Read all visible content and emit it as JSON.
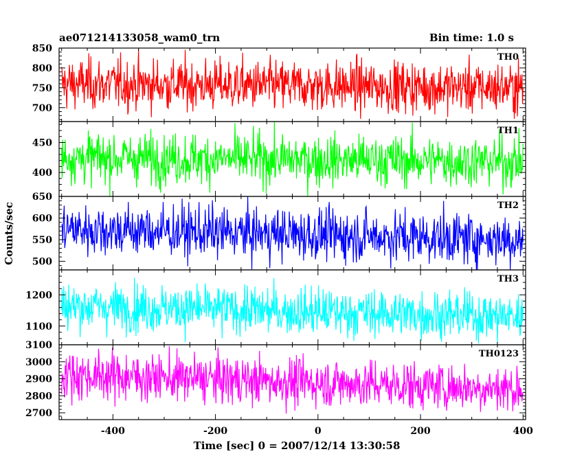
{
  "chart_data": {
    "type": "line",
    "title_left": "ae071214133058_wam0_trn",
    "title_right": "Bin time: 1.0 s",
    "xlabel": "Time [sec] 0 = 2007/12/14 13:30:58",
    "ylabel": "Counts/sec",
    "xlim": [
      -505,
      405
    ],
    "x_ticks": [
      -400,
      -200,
      0,
      200,
      400
    ],
    "x_start": -500,
    "x_end": 400,
    "x_step": 1,
    "panels": [
      {
        "name": "TH0",
        "color": "#ff0000",
        "ylim": [
          665,
          850
        ],
        "y_ticks": [
          700,
          750,
          800,
          850
        ],
        "mean_start": 760,
        "mean_end": 750,
        "spread": 32,
        "min_value": 665,
        "max_value": 850
      },
      {
        "name": "TH1",
        "color": "#00ff00",
        "ylim": [
          360,
          485
        ],
        "y_ticks": [
          400,
          450
        ],
        "mean_start": 425,
        "mean_end": 418,
        "spread": 21,
        "min_value": 360,
        "max_value": 485
      },
      {
        "name": "TH2",
        "color": "#0000ff",
        "ylim": [
          480,
          650
        ],
        "y_ticks": [
          500,
          550,
          600,
          650
        ],
        "mean_start": 575,
        "mean_end": 550,
        "spread": 30,
        "min_value": 480,
        "max_value": 650
      },
      {
        "name": "TH3",
        "color": "#00ffff",
        "ylim": [
          1040,
          1280
        ],
        "y_ticks": [
          1100,
          1200
        ],
        "mean_start": 1165,
        "mean_end": 1130,
        "spread": 38,
        "min_value": 1040,
        "max_value": 1280
      },
      {
        "name": "TH0123",
        "color": "#ff00ff",
        "ylim": [
          2660,
          3100
        ],
        "y_ticks": [
          2700,
          2800,
          2900,
          3000,
          3100
        ],
        "mean_start": 2925,
        "mean_end": 2840,
        "spread": 70,
        "min_value": 2660,
        "max_value": 3100
      }
    ]
  }
}
